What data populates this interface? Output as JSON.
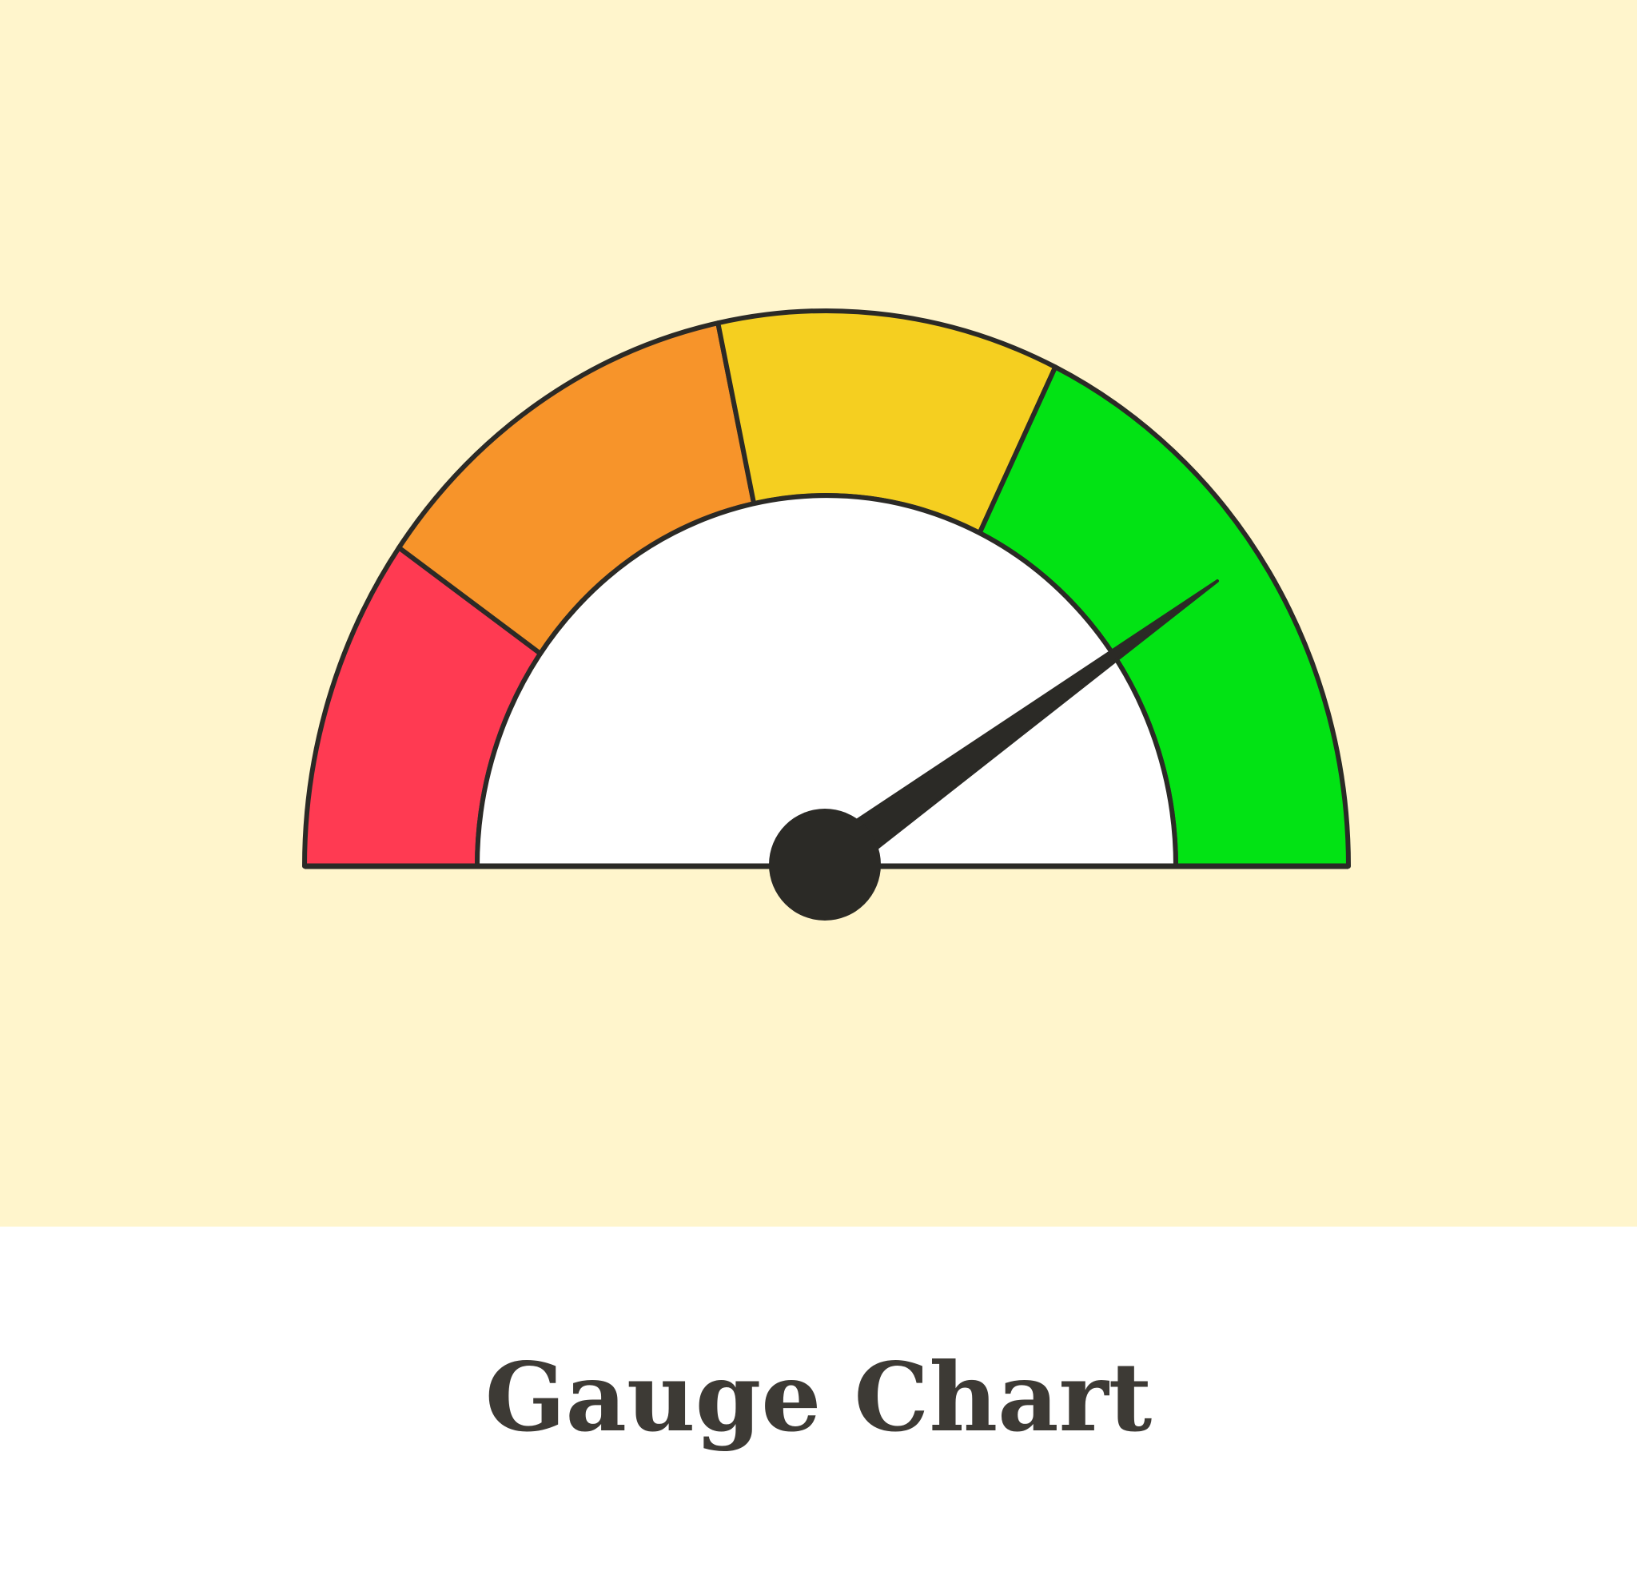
{
  "title": "Gauge Chart"
}
